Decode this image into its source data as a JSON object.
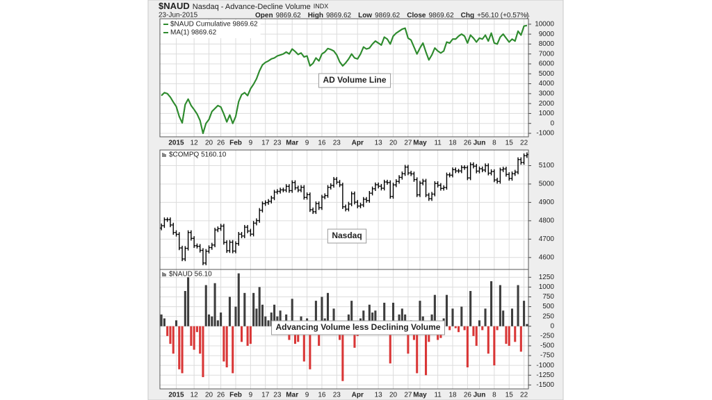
{
  "header": {
    "symbol": "$NAUD",
    "name": "Nasdaq - Advance-Decline Volume",
    "exchange": "INDX",
    "date": "23-Jun-2015",
    "quote": [
      {
        "label": "Open",
        "value": "9869.62"
      },
      {
        "label": "High",
        "value": "9869.62"
      },
      {
        "label": "Low",
        "value": "9869.62"
      },
      {
        "label": "Close",
        "value": "9869.62"
      },
      {
        "label": "Chg",
        "value": "+56.10 (+0.57%)"
      }
    ]
  },
  "chart_data": [
    {
      "type": "line",
      "annotation": "AD Volume Line",
      "annotation_color": "#2e8b2e",
      "xlim": [
        -0.5,
        123.5
      ],
      "ylim": [
        -1350,
        10550
      ],
      "grid": true,
      "yticks": [
        -1000,
        0,
        1000,
        2000,
        3000,
        4000,
        5000,
        6000,
        7000,
        8000,
        9000,
        10000
      ],
      "xticks": [
        {
          "value": 5,
          "label": "2015"
        },
        {
          "value": 11,
          "label": "12"
        },
        {
          "value": 16,
          "label": "20"
        },
        {
          "value": 20,
          "label": "26"
        },
        {
          "value": 25,
          "label": "Feb"
        },
        {
          "value": 30,
          "label": "9"
        },
        {
          "value": 35,
          "label": "17"
        },
        {
          "value": 39,
          "label": "23"
        },
        {
          "value": 44,
          "label": "Mar"
        },
        {
          "value": 49,
          "label": "9"
        },
        {
          "value": 54,
          "label": "16"
        },
        {
          "value": 59,
          "label": "23"
        },
        {
          "value": 66,
          "label": "Apr"
        },
        {
          "value": 73,
          "label": "13"
        },
        {
          "value": 78,
          "label": "20"
        },
        {
          "value": 83,
          "label": "27"
        },
        {
          "value": 87,
          "label": "May"
        },
        {
          "value": 93,
          "label": "11"
        },
        {
          "value": 98,
          "label": "18"
        },
        {
          "value": 103,
          "label": "26"
        },
        {
          "value": 107,
          "label": "Jun"
        },
        {
          "value": 112,
          "label": "8"
        },
        {
          "value": 117,
          "label": "15"
        },
        {
          "value": 122,
          "label": "22"
        }
      ],
      "series": [
        {
          "name": "$NAUD Cumulative 9869.62",
          "color": "#2e8b2e",
          "values": [
            2800,
            3100,
            3000,
            2650,
            2150,
            1700,
            700,
            50,
            1900,
            2450,
            1800,
            1400,
            950,
            300,
            -1000,
            0,
            400,
            1200,
            1500,
            1800,
            1650,
            950,
            150,
            850,
            0,
            700,
            2200,
            2900,
            3100,
            2800,
            3500,
            3950,
            4500,
            5300,
            5900,
            6150,
            6300,
            6500,
            6600,
            6800,
            6900,
            7000,
            7200,
            7000,
            7500,
            7250,
            6950,
            7100,
            6700,
            6800,
            5800,
            6050,
            6600,
            6300,
            7000,
            7200,
            7550,
            7450,
            7300,
            6900,
            6200,
            5800,
            6100,
            6500,
            7000,
            6600,
            6500,
            7000,
            7700,
            7500,
            7600,
            8000,
            8300,
            8100,
            7900,
            8700,
            8500,
            8000,
            8800,
            9100,
            9300,
            9500,
            9600,
            8600,
            8400,
            7700,
            7000,
            7600,
            8100,
            7200,
            6400,
            6900,
            7600,
            7300,
            7100,
            7300,
            8200,
            8100,
            8500,
            8500,
            8800,
            9000,
            8800,
            8100,
            8900,
            8600,
            8200,
            8600,
            8500,
            8900,
            8300,
            9100,
            8100,
            8000,
            8700,
            9000,
            8600,
            8200,
            8500,
            8300,
            9300,
            8900,
            9810,
            9869.62
          ]
        },
        {
          "name": "MA(1) 9869.62",
          "color": "#2e8b2e",
          "values": [
            2800,
            3100,
            3000,
            2650,
            2150,
            1700,
            700,
            50,
            1900,
            2450,
            1800,
            1400,
            950,
            300,
            -1000,
            0,
            400,
            1200,
            1500,
            1800,
            1650,
            950,
            150,
            850,
            0,
            700,
            2200,
            2900,
            3100,
            2800,
            3500,
            3950,
            4500,
            5300,
            5900,
            6150,
            6300,
            6500,
            6600,
            6800,
            6900,
            7000,
            7200,
            7000,
            7500,
            7250,
            6950,
            7100,
            6700,
            6800,
            5800,
            6050,
            6600,
            6300,
            7000,
            7200,
            7550,
            7450,
            7300,
            6900,
            6200,
            5800,
            6100,
            6500,
            7000,
            6600,
            6500,
            7000,
            7700,
            7500,
            7600,
            8000,
            8300,
            8100,
            7900,
            8700,
            8500,
            8000,
            8800,
            9100,
            9300,
            9500,
            9600,
            8600,
            8400,
            7700,
            7000,
            7600,
            8100,
            7200,
            6400,
            6900,
            7600,
            7300,
            7100,
            7300,
            8200,
            8100,
            8500,
            8500,
            8800,
            9000,
            8800,
            8100,
            8900,
            8600,
            8200,
            8600,
            8500,
            8900,
            8300,
            9100,
            8100,
            8000,
            8700,
            9000,
            8600,
            8200,
            8500,
            8300,
            9300,
            8900,
            9810,
            9869.62
          ]
        }
      ]
    },
    {
      "type": "ohlc",
      "name": "$COMPQ 5160.10",
      "annotation": "Nasdaq",
      "annotation_color": "#000000",
      "color": "#000000",
      "xlim": [
        -0.5,
        123.5
      ],
      "ylim": [
        4535,
        5185
      ],
      "grid": true,
      "yticks": [
        4600,
        4700,
        4800,
        4900,
        5000,
        5100
      ],
      "open": [
        4760,
        4773,
        4806,
        4806,
        4777,
        4736,
        4726,
        4652,
        4592,
        4650,
        4736,
        4704,
        4664,
        4661,
        4639,
        4570,
        4634,
        4654,
        4668,
        4750,
        4757,
        4771,
        4682,
        4637,
        4683,
        4635,
        4676,
        4727,
        4717,
        4765,
        4744,
        4727,
        4787,
        4801,
        4857,
        4893,
        4899,
        4906,
        4924,
        4956,
        4960,
        4968,
        4967,
        4987,
        4964,
        5008,
        4979,
        4967,
        4982,
        4927,
        4942,
        4860,
        4849,
        4893,
        4871,
        4929,
        4937,
        4982,
        4992,
        5026,
        5010,
        4995,
        4876,
        4863,
        4891,
        4947,
        4901,
        4880,
        4886,
        4917,
        4910,
        4950,
        4974,
        4996,
        4988,
        4977,
        5011,
        5008,
        4932,
        4995,
        5014,
        5036,
        5056,
        5092,
        5060,
        5055,
        5024,
        4941,
        5005,
        5016,
        4940,
        4920,
        4945,
        5003,
        4993,
        4976,
        4981,
        5050,
        5048,
        5078,
        5071,
        5071,
        5090,
        5089,
        5033,
        5106,
        5097,
        5070,
        5083,
        5076,
        5100,
        5059,
        5068,
        5022,
        5014,
        5077,
        5082,
        5052,
        5030,
        5056,
        5065,
        5133,
        5117,
        5154
      ],
      "high": [
        4785,
        4818,
        4818,
        4818,
        4789,
        4748,
        4738,
        4664,
        4662,
        4748,
        4748,
        4716,
        4676,
        4673,
        4651,
        4646,
        4666,
        4680,
        4762,
        4769,
        4783,
        4783,
        4694,
        4695,
        4695,
        4688,
        4739,
        4739,
        4777,
        4777,
        4756,
        4799,
        4813,
        4869,
        4905,
        4911,
        4918,
        4936,
        4968,
        4972,
        4980,
        4980,
        4999,
        4999,
        5020,
        5020,
        4991,
        4994,
        4994,
        4954,
        4954,
        4872,
        4905,
        4905,
        4941,
        4949,
        4994,
        5004,
        5038,
        5038,
        5022,
        5007,
        4888,
        4903,
        4959,
        4959,
        4913,
        4898,
        4929,
        4929,
        4962,
        4986,
        5008,
        5008,
        5000,
        5023,
        5023,
        5020,
        5007,
        5026,
        5048,
        5068,
        5104,
        5104,
        5072,
        5067,
        5036,
        5017,
        5028,
        5028,
        4952,
        4957,
        5015,
        5015,
        5005,
        4993,
        5062,
        5062,
        5090,
        5090,
        5083,
        5102,
        5102,
        5101,
        5118,
        5118,
        5109,
        5095,
        5095,
        5112,
        5112,
        5080,
        5080,
        5034,
        5089,
        5094,
        5094,
        5064,
        5068,
        5077,
        5145,
        5145,
        5166,
        5172
      ],
      "low": [
        4748,
        4761,
        4794,
        4765,
        4724,
        4714,
        4640,
        4580,
        4580,
        4638,
        4692,
        4652,
        4649,
        4627,
        4558,
        4558,
        4622,
        4642,
        4656,
        4738,
        4745,
        4670,
        4625,
        4625,
        4623,
        4623,
        4664,
        4705,
        4705,
        4732,
        4715,
        4715,
        4775,
        4789,
        4845,
        4881,
        4887,
        4894,
        4912,
        4944,
        4948,
        4955,
        4955,
        4952,
        4952,
        4967,
        4955,
        4955,
        4915,
        4915,
        4848,
        4837,
        4837,
        4859,
        4859,
        4917,
        4925,
        4970,
        4980,
        4998,
        4983,
        4864,
        4851,
        4851,
        4879,
        4889,
        4868,
        4868,
        4874,
        4898,
        4898,
        4938,
        4962,
        4976,
        4965,
        4965,
        4996,
        4920,
        4920,
        4983,
        5002,
        5024,
        5044,
        5048,
        5043,
        5012,
        4929,
        4929,
        4993,
        4928,
        4908,
        4908,
        4933,
        4981,
        4964,
        4964,
        4969,
        5036,
        5036,
        5059,
        5059,
        5059,
        5077,
        5021,
        5021,
        5085,
        5058,
        5058,
        5064,
        5064,
        5047,
        5047,
        5010,
        5002,
        5002,
        5065,
        5040,
        5018,
        5018,
        5044,
        5053,
        5105,
        5105,
        5142
      ],
      "close": [
        4773,
        4806,
        4806,
        4777,
        4736,
        4726,
        4652,
        4592,
        4650,
        4736,
        4704,
        4664,
        4661,
        4639,
        4570,
        4634,
        4654,
        4668,
        4750,
        4757,
        4771,
        4682,
        4637,
        4683,
        4635,
        4676,
        4727,
        4717,
        4765,
        4744,
        4727,
        4787,
        4801,
        4857,
        4893,
        4899,
        4906,
        4924,
        4956,
        4960,
        4968,
        4967,
        4987,
        4964,
        5008,
        4979,
        4967,
        4982,
        4927,
        4942,
        4860,
        4849,
        4893,
        4871,
        4929,
        4937,
        4982,
        4992,
        5026,
        5010,
        4995,
        4876,
        4863,
        4891,
        4947,
        4901,
        4880,
        4886,
        4917,
        4910,
        4950,
        4974,
        4996,
        4988,
        4977,
        5011,
        5008,
        4932,
        4995,
        5014,
        5036,
        5056,
        5092,
        5060,
        5055,
        5024,
        4941,
        5005,
        5016,
        4940,
        4920,
        4945,
        5003,
        4993,
        4976,
        4981,
        5050,
        5048,
        5078,
        5071,
        5071,
        5090,
        5089,
        5033,
        5106,
        5097,
        5070,
        5083,
        5076,
        5100,
        5059,
        5068,
        5022,
        5014,
        5077,
        5082,
        5052,
        5030,
        5056,
        5065,
        5133,
        5117,
        5154,
        5160.1
      ]
    },
    {
      "type": "bar",
      "name": "$NAUD 56.10",
      "annotation": "Advancing Volume less Declining Volume",
      "annotation_color": "#000000",
      "positive_color": "#3d3d3d",
      "negative_color": "#d93636",
      "xlim": [
        -0.5,
        123.5
      ],
      "ylim": [
        -1600,
        1450
      ],
      "grid": true,
      "yticks": [
        -1500,
        -1250,
        -1000,
        -750,
        -500,
        -250,
        0,
        250,
        500,
        750,
        1000,
        1250
      ],
      "xticks": [
        {
          "value": 5,
          "label": "2015"
        },
        {
          "value": 11,
          "label": "12"
        },
        {
          "value": 16,
          "label": "20"
        },
        {
          "value": 20,
          "label": "26"
        },
        {
          "value": 25,
          "label": "Feb"
        },
        {
          "value": 30,
          "label": "9"
        },
        {
          "value": 35,
          "label": "17"
        },
        {
          "value": 39,
          "label": "23"
        },
        {
          "value": 44,
          "label": "Mar"
        },
        {
          "value": 49,
          "label": "9"
        },
        {
          "value": 54,
          "label": "16"
        },
        {
          "value": 59,
          "label": "23"
        },
        {
          "value": 66,
          "label": "Apr"
        },
        {
          "value": 73,
          "label": "13"
        },
        {
          "value": 78,
          "label": "20"
        },
        {
          "value": 83,
          "label": "27"
        },
        {
          "value": 87,
          "label": "May"
        },
        {
          "value": 93,
          "label": "11"
        },
        {
          "value": 98,
          "label": "18"
        },
        {
          "value": 103,
          "label": "26"
        },
        {
          "value": 107,
          "label": "Jun"
        },
        {
          "value": 112,
          "label": "8"
        },
        {
          "value": 117,
          "label": "15"
        },
        {
          "value": 122,
          "label": "22"
        }
      ],
      "values": [
        300,
        200,
        -250,
        -450,
        -700,
        150,
        -1100,
        -1200,
        900,
        1250,
        -500,
        -600,
        -150,
        -700,
        -1300,
        1050,
        300,
        250,
        1100,
        150,
        350,
        -900,
        -1050,
        750,
        -1200,
        500,
        1350,
        -400,
        850,
        -500,
        -450,
        850,
        450,
        1000,
        550,
        250,
        150,
        350,
        550,
        250,
        400,
        -150,
        300,
        -350,
        700,
        -450,
        -400,
        250,
        -900,
        200,
        -1100,
        -150,
        650,
        -500,
        750,
        200,
        850,
        100,
        450,
        -100,
        -350,
        -1400,
        -200,
        300,
        650,
        -550,
        -250,
        200,
        400,
        -100,
        550,
        350,
        400,
        -200,
        -150,
        600,
        100,
        -950,
        600,
        100,
        300,
        450,
        300,
        -700,
        150,
        -350,
        -1200,
        650,
        250,
        -1250,
        -400,
        300,
        800,
        -350,
        -300,
        200,
        800,
        -100,
        450,
        -50,
        -150,
        500,
        -100,
        -1050,
        900,
        -250,
        -500,
        150,
        -100,
        450,
        -700,
        1150,
        -1000,
        -100,
        1050,
        400,
        -450,
        -500,
        450,
        -400,
        1050,
        -650,
        650,
        56.1
      ]
    }
  ]
}
